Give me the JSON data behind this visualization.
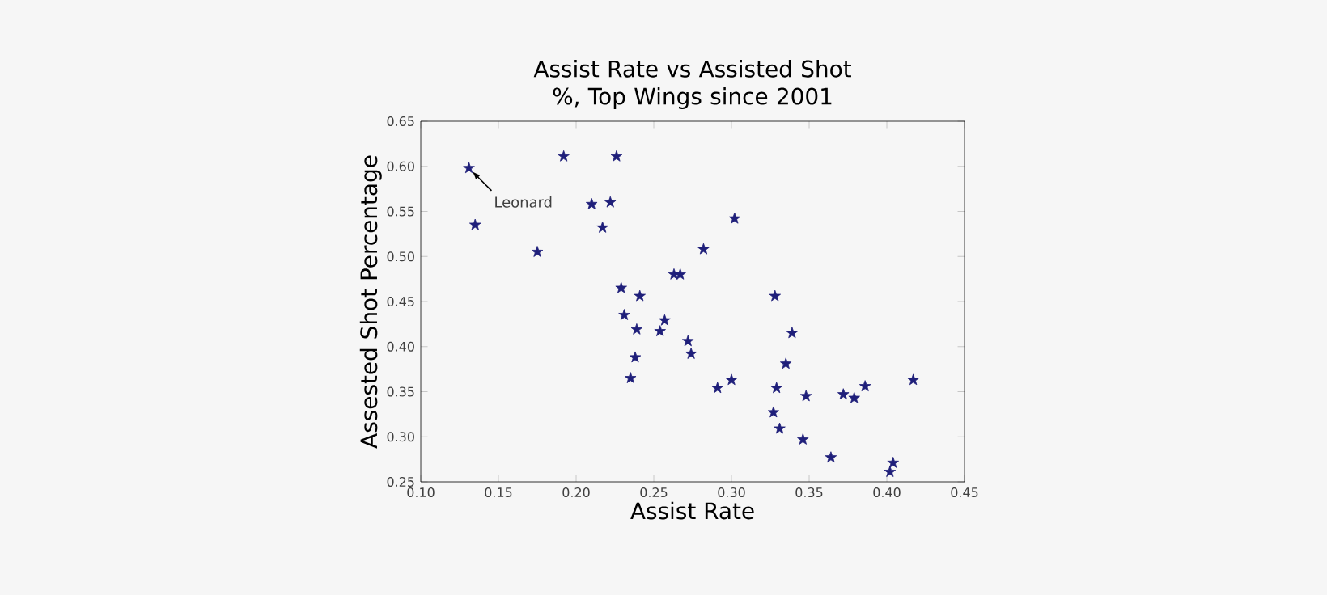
{
  "chart_data": {
    "type": "scatter",
    "title": "Assist Rate vs Assisted Shot %, Top Wings since 2001",
    "xlabel": "Assist Rate",
    "ylabel": "Assested Shot Percentage",
    "x": [
      0.131,
      0.135,
      0.175,
      0.192,
      0.226,
      0.21,
      0.222,
      0.217,
      0.229,
      0.241,
      0.231,
      0.239,
      0.238,
      0.235,
      0.254,
      0.257,
      0.263,
      0.267,
      0.282,
      0.272,
      0.274,
      0.302,
      0.291,
      0.3,
      0.328,
      0.339,
      0.335,
      0.329,
      0.327,
      0.331,
      0.348,
      0.346,
      0.372,
      0.379,
      0.386,
      0.364,
      0.417,
      0.404,
      0.402
    ],
    "values": [
      0.598,
      0.535,
      0.505,
      0.611,
      0.611,
      0.558,
      0.56,
      0.532,
      0.465,
      0.456,
      0.435,
      0.419,
      0.388,
      0.365,
      0.417,
      0.429,
      0.48,
      0.48,
      0.508,
      0.406,
      0.392,
      0.542,
      0.354,
      0.363,
      0.456,
      0.415,
      0.381,
      0.354,
      0.327,
      0.309,
      0.345,
      0.297,
      0.347,
      0.343,
      0.356,
      0.277,
      0.363,
      0.271,
      0.261
    ],
    "color": "#1f1f7a",
    "marker": "star",
    "xlim": [
      0.1,
      0.45
    ],
    "ylim": [
      0.25,
      0.65
    ],
    "xticks": [
      {
        "value": 0.1,
        "label": "0.10"
      },
      0.15,
      {
        "value": 0.2,
        "label": "0.20"
      },
      0.25,
      {
        "value": 0.3,
        "label": "0.30"
      },
      0.35,
      {
        "value": 0.4,
        "label": "0.40"
      },
      0.45
    ],
    "yticks": [
      0.25,
      {
        "value": 0.3,
        "label": "0.30"
      },
      0.35,
      {
        "value": 0.4,
        "label": "0.40"
      },
      0.45,
      {
        "value": 0.5,
        "label": "0.50"
      },
      0.55,
      {
        "value": 0.6,
        "label": "0.60"
      },
      0.65
    ],
    "annotations": [
      {
        "text": "Leonard",
        "x": 0.131,
        "y": 0.598
      }
    ]
  }
}
